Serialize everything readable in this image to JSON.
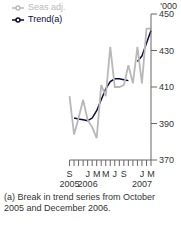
{
  "chart_data": {
    "type": "line",
    "ylabel": "'000",
    "categories": [
      "S",
      null,
      null,
      null,
      "J",
      null,
      "M",
      null,
      "M",
      null,
      "J",
      null,
      "S",
      null,
      null,
      null,
      "J",
      null,
      "M"
    ],
    "category_years": [
      "2005",
      null,
      null,
      null,
      "2006",
      null,
      null,
      null,
      null,
      null,
      null,
      null,
      null,
      null,
      null,
      null,
      "2007",
      null,
      null
    ],
    "series": [
      {
        "name": "Trend(a)",
        "color": "#0a0a3a",
        "values": [
          null,
          393,
          392.5,
          392,
          391.5,
          393,
          397,
          403,
          409,
          413,
          414.5,
          414.5,
          414,
          413.5,
          null,
          424,
          427,
          434,
          441
        ]
      },
      {
        "name": "Seas adj.",
        "color": "#b8b8b8",
        "values": [
          405,
          384,
          393,
          403,
          392,
          388,
          382,
          411,
          405,
          432,
          410,
          410,
          411,
          422,
          412,
          432,
          412,
          442,
          442
        ]
      }
    ],
    "ylim": [
      370,
      450
    ],
    "yticks": [
      370,
      390,
      410,
      430,
      450
    ],
    "grid": false,
    "legend": "top-left",
    "annotations": [
      "(a) Break in trend series from October 2005 and December 2006."
    ]
  }
}
